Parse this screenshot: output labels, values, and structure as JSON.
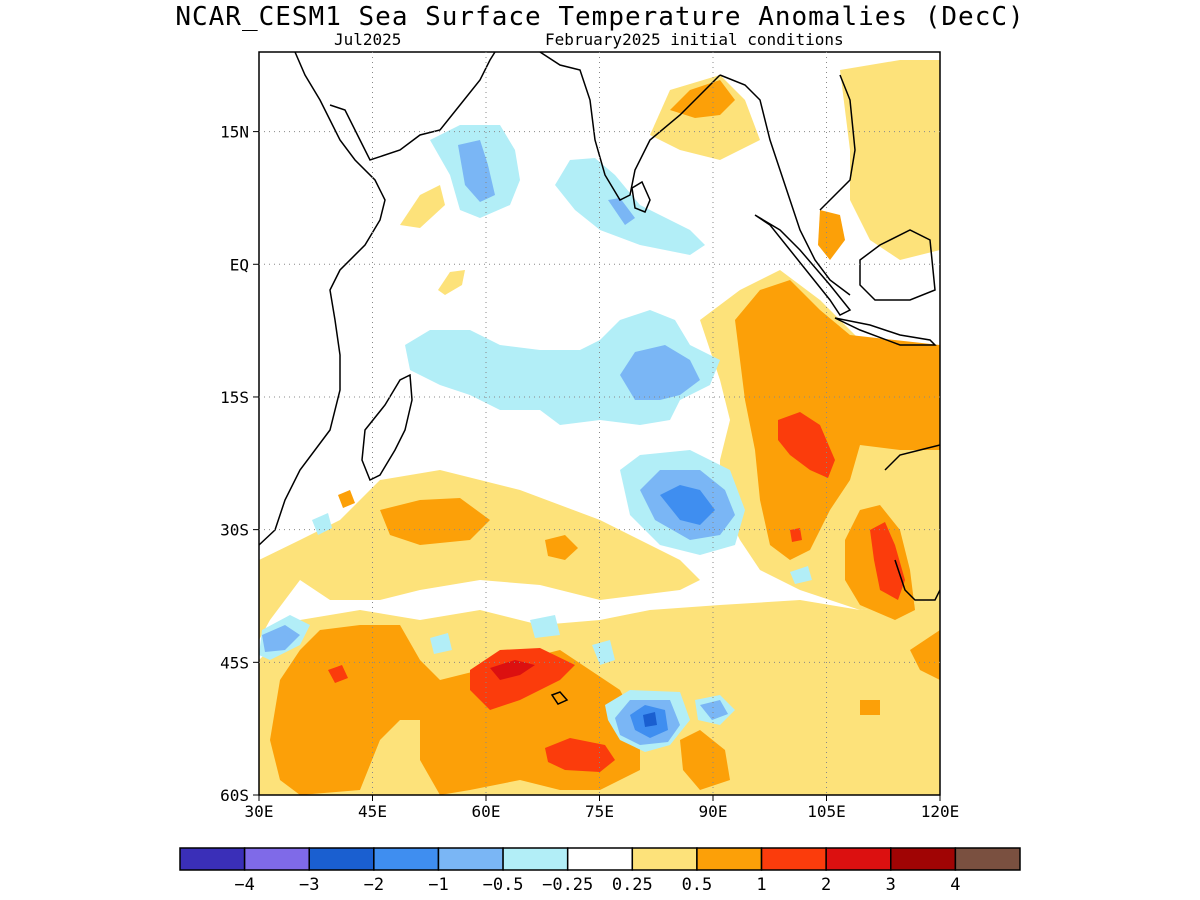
{
  "title": "NCAR_CESM1 Sea Surface Temperature Anomalies (DecC)",
  "subtitle_left": "Jul2025",
  "subtitle_right": "February2025 initial conditions",
  "map": {
    "lon_range": [
      30,
      120
    ],
    "lat_range": [
      -60,
      24
    ],
    "x_ticks": [
      {
        "value": 30,
        "label": "30E"
      },
      {
        "value": 45,
        "label": "45E"
      },
      {
        "value": 60,
        "label": "60E"
      },
      {
        "value": 75,
        "label": "75E"
      },
      {
        "value": 90,
        "label": "90E"
      },
      {
        "value": 105,
        "label": "105E"
      },
      {
        "value": 120,
        "label": "120E"
      }
    ],
    "y_ticks": [
      {
        "value": 15,
        "label": "15N"
      },
      {
        "value": 0,
        "label": "EQ"
      },
      {
        "value": -15,
        "label": "15S"
      },
      {
        "value": -30,
        "label": "30S"
      },
      {
        "value": -45,
        "label": "45S"
      },
      {
        "value": -60,
        "label": "60S"
      }
    ],
    "grid": "dotted"
  },
  "colorbar": {
    "colors": [
      "#3a2fb8",
      "#7f6ae8",
      "#1a5fd0",
      "#3f8ef0",
      "#7ab6f5",
      "#b2eef7",
      "#ffffff",
      "#fde27a",
      "#fca008",
      "#fb3c0c",
      "#dc1010",
      "#a00404",
      "#7a5040"
    ],
    "labels": [
      "−4",
      "−3",
      "−2",
      "−1",
      "−0.5",
      "−0.25",
      "0.25",
      "0.5",
      "1",
      "2",
      "3",
      "4"
    ]
  },
  "colors": {
    "lt_yellow": "#fde27a",
    "orange": "#fca008",
    "red": "#fb3c0c",
    "dark_red": "#dc1010",
    "lt_cyan": "#b2eef7",
    "lt_blue": "#7ab6f5",
    "blue": "#3f8ef0",
    "dk_blue": "#1a5fd0"
  }
}
